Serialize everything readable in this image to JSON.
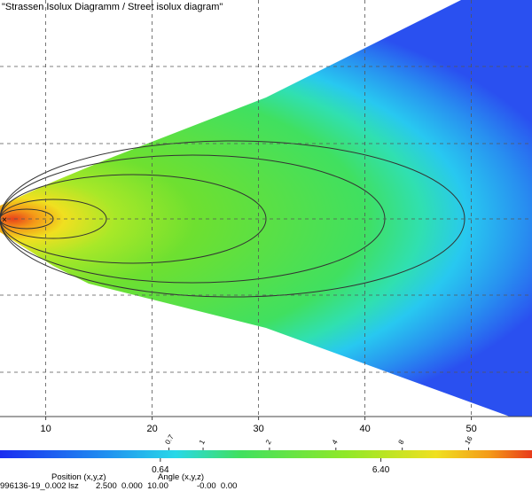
{
  "chart_data": {
    "type": "contour",
    "title": "\"Strassen Isolux Diagramm / Street isolux diagram\"",
    "xlim": [
      5.7,
      55.7
    ],
    "xticks": [
      10,
      20,
      30,
      40,
      50
    ],
    "grid": true,
    "colorbar": {
      "scale": "log",
      "lim": [
        0.12,
        31
      ],
      "ticks": [
        0.7,
        1,
        2,
        4,
        8,
        16
      ],
      "marked_values": [
        0.64,
        {
          "value": 6.4,
          "label": "6.40"
        }
      ]
    },
    "footer": {
      "file": "996136-19_0.002 lsz",
      "position_label": "Position (x,y,z)",
      "position_values": "2.500  0.000  10.00",
      "angle_label": "Angle (x,y,z)",
      "angle_values": "-0.00  0.00"
    }
  }
}
